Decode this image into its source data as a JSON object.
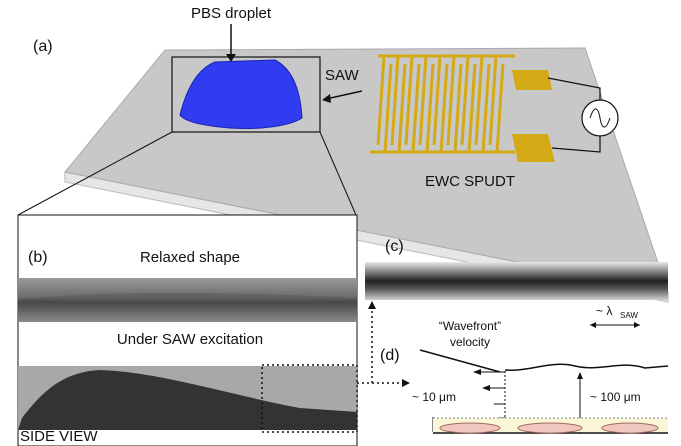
{
  "panel_a": {
    "label": "(a)",
    "droplet_label": "PBS droplet",
    "saw_label": "SAW",
    "transducer_label": "EWC SPUDT"
  },
  "panel_b": {
    "label": "(b)",
    "top_caption": "Relaxed shape",
    "bottom_caption": "Under SAW excitation",
    "view_label": "SIDE VIEW"
  },
  "panel_c": {
    "label": "(c)"
  },
  "panel_d": {
    "label": "(d)",
    "wavefront_line1": "“Wavefront”",
    "wavefront_line2": "velocity",
    "wavelength_symbol": "~ λ",
    "wavelength_subscript": "SAW",
    "small_height": "~ 10 μm",
    "large_height": "~ 100 μm"
  }
}
